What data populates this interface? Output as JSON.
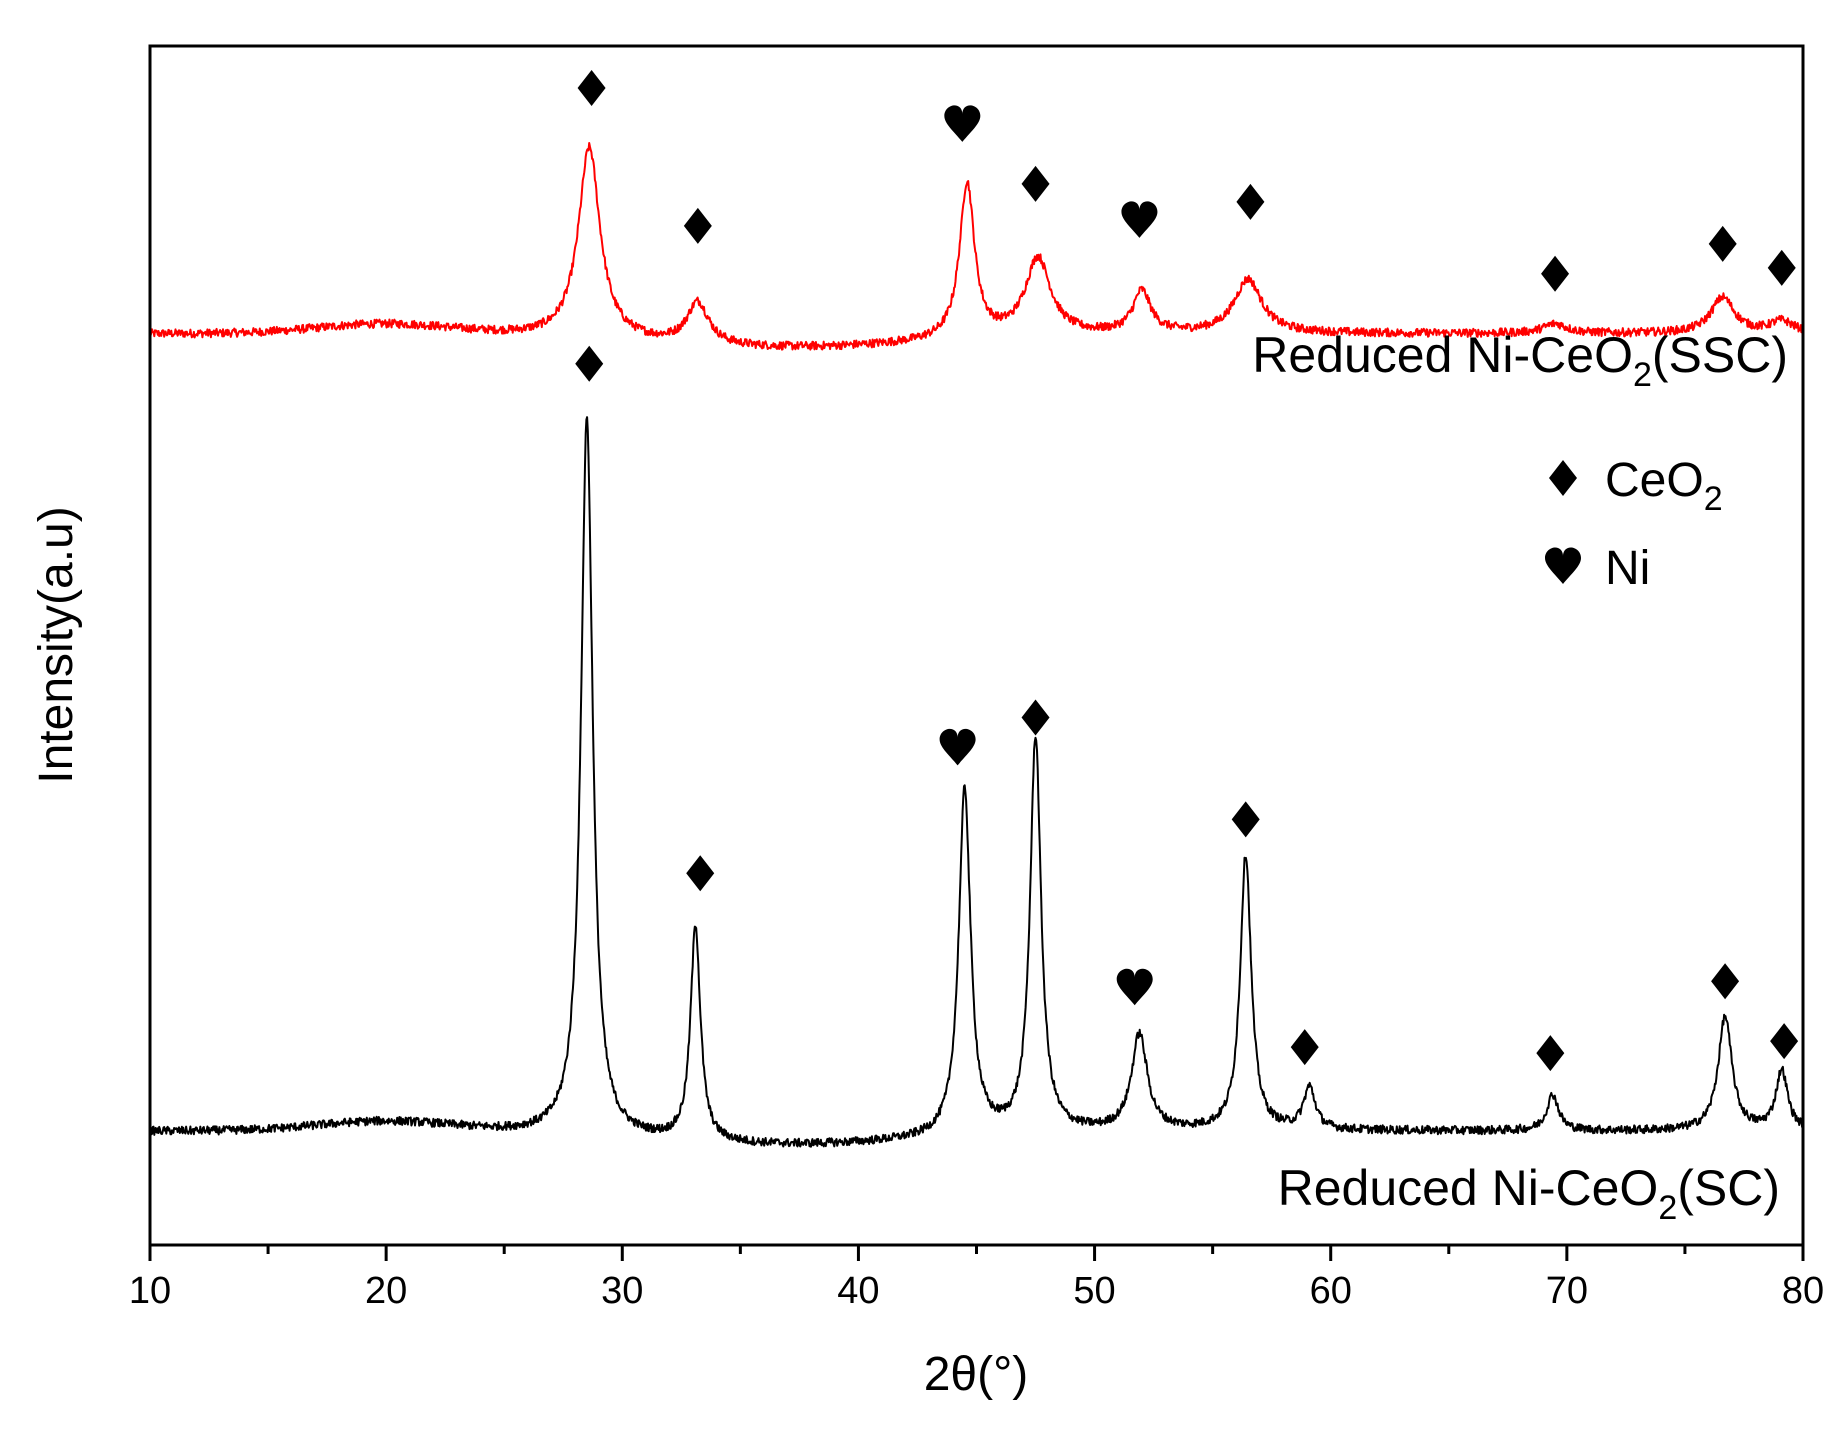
{
  "chart_data": {
    "type": "line",
    "xlabel": "2θ(°)",
    "ylabel": "Intensity(a.u)",
    "xlim": [
      10,
      80
    ],
    "xticks": [
      "10",
      "20",
      "30",
      "40",
      "50",
      "60",
      "70",
      "80"
    ],
    "yticks": false,
    "grid": false,
    "colors": {
      "ssc": "#ff0000",
      "sc": "#000000",
      "axis": "#000000"
    },
    "series": [
      {
        "name": "Reduced Ni-CeO2(SSC)",
        "label_main": "Reduced Ni-CeO",
        "label_sub": "2",
        "label_tail": "(SSC)",
        "color": "#ff0000",
        "baseline": 0.76,
        "peaks": [
          {
            "x": 28.6,
            "h": 0.16,
            "w": 0.55,
            "phase": "CeO2"
          },
          {
            "x": 33.2,
            "h": 0.035,
            "w": 0.55,
            "phase": "CeO2"
          },
          {
            "x": 44.6,
            "h": 0.13,
            "w": 0.38,
            "phase": "Ni"
          },
          {
            "x": 47.6,
            "h": 0.065,
            "w": 0.65,
            "phase": "CeO2"
          },
          {
            "x": 52.0,
            "h": 0.035,
            "w": 0.45,
            "phase": "Ni"
          },
          {
            "x": 56.5,
            "h": 0.045,
            "w": 0.7,
            "phase": "CeO2"
          },
          {
            "x": 69.5,
            "h": 0.008,
            "w": 0.6,
            "phase": "CeO2"
          },
          {
            "x": 76.6,
            "h": 0.03,
            "w": 0.6,
            "phase": "CeO2"
          },
          {
            "x": 79.1,
            "h": 0.01,
            "w": 0.6,
            "phase": "CeO2"
          }
        ],
        "markers": [
          {
            "x": 28.7,
            "symbol": "diamond",
            "y": 0.965
          },
          {
            "x": 33.2,
            "symbol": "diamond",
            "y": 0.85
          },
          {
            "x": 44.4,
            "symbol": "heart",
            "y": 0.935
          },
          {
            "x": 47.5,
            "symbol": "diamond",
            "y": 0.885
          },
          {
            "x": 51.9,
            "symbol": "heart",
            "y": 0.855
          },
          {
            "x": 56.6,
            "symbol": "diamond",
            "y": 0.87
          },
          {
            "x": 69.5,
            "symbol": "diamond",
            "y": 0.81
          },
          {
            "x": 76.6,
            "symbol": "diamond",
            "y": 0.835
          },
          {
            "x": 79.1,
            "symbol": "diamond",
            "y": 0.815
          }
        ]
      },
      {
        "name": "Reduced Ni-CeO2(SC)",
        "label_main": "Reduced Ni-CeO",
        "label_sub": "2",
        "label_tail": "(SC)",
        "color": "#000000",
        "baseline": 0.095,
        "peaks": [
          {
            "x": 28.5,
            "h": 0.6,
            "w": 0.3,
            "phase": "CeO2"
          },
          {
            "x": 33.1,
            "h": 0.18,
            "w": 0.25,
            "phase": "CeO2"
          },
          {
            "x": 44.5,
            "h": 0.29,
            "w": 0.3,
            "phase": "Ni"
          },
          {
            "x": 47.5,
            "h": 0.33,
            "w": 0.28,
            "phase": "CeO2"
          },
          {
            "x": 51.9,
            "h": 0.08,
            "w": 0.4,
            "phase": "Ni"
          },
          {
            "x": 56.4,
            "h": 0.23,
            "w": 0.28,
            "phase": "CeO2"
          },
          {
            "x": 59.1,
            "h": 0.035,
            "w": 0.3,
            "phase": "CeO2"
          },
          {
            "x": 69.4,
            "h": 0.03,
            "w": 0.3,
            "phase": "CeO2"
          },
          {
            "x": 76.7,
            "h": 0.095,
            "w": 0.35,
            "phase": "CeO2"
          },
          {
            "x": 79.1,
            "h": 0.05,
            "w": 0.3,
            "phase": "CeO2"
          }
        ],
        "markers": [
          {
            "x": 28.6,
            "symbol": "diamond",
            "y": 0.735
          },
          {
            "x": 33.3,
            "symbol": "diamond",
            "y": 0.31
          },
          {
            "x": 44.2,
            "symbol": "heart",
            "y": 0.415
          },
          {
            "x": 47.5,
            "symbol": "diamond",
            "y": 0.44
          },
          {
            "x": 51.7,
            "symbol": "heart",
            "y": 0.215
          },
          {
            "x": 56.4,
            "symbol": "diamond",
            "y": 0.355
          },
          {
            "x": 58.9,
            "symbol": "diamond",
            "y": 0.165
          },
          {
            "x": 69.3,
            "symbol": "diamond",
            "y": 0.16
          },
          {
            "x": 76.7,
            "symbol": "diamond",
            "y": 0.22
          },
          {
            "x": 79.2,
            "symbol": "diamond",
            "y": 0.17
          }
        ]
      }
    ],
    "legend": {
      "placement": "upper-right",
      "entries": [
        {
          "symbol": "diamond",
          "label_main": "CeO",
          "label_sub": "2"
        },
        {
          "symbol": "heart",
          "label_main": "Ni",
          "label_sub": ""
        }
      ]
    }
  }
}
